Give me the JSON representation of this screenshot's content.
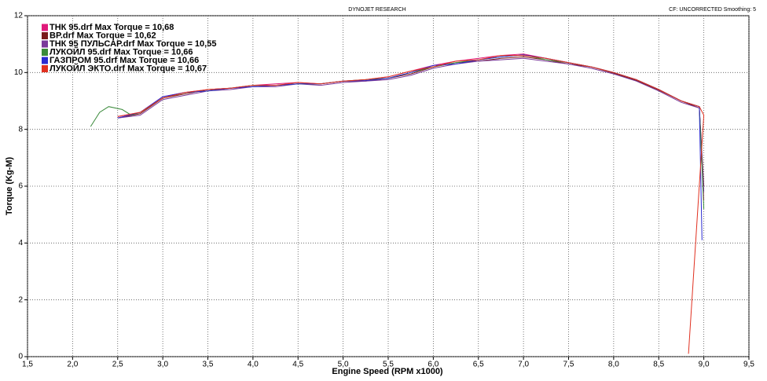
{
  "chart_data": {
    "type": "line",
    "title": "DYNOJET RESEARCH",
    "subtitle": "CF: UNCORRECTED  Smoothing: 5",
    "x_label": "Engine Speed (RPM x1000)",
    "y_label": "Torque (Kg-M)",
    "xlim": [
      1.5,
      9.5
    ],
    "xticks": [
      {
        "value": 1.5,
        "label": "1,5"
      },
      {
        "value": 2.0,
        "label": "2,0"
      },
      {
        "value": 2.5,
        "label": "2,5"
      },
      {
        "value": 3.0,
        "label": "3,0"
      },
      {
        "value": 3.5,
        "label": "3,5"
      },
      {
        "value": 4.0,
        "label": "4,0"
      },
      {
        "value": 4.5,
        "label": "4,5"
      },
      {
        "value": 5.0,
        "label": "5,0"
      },
      {
        "value": 5.5,
        "label": "5,5"
      },
      {
        "value": 6.0,
        "label": "6,0"
      },
      {
        "value": 6.5,
        "label": "6,5"
      },
      {
        "value": 7.0,
        "label": "7,0"
      },
      {
        "value": 7.5,
        "label": "7,5"
      },
      {
        "value": 8.0,
        "label": "8,0"
      },
      {
        "value": 8.5,
        "label": "8,5"
      },
      {
        "value": 9.0,
        "label": "9,0"
      },
      {
        "value": 9.5,
        "label": "9,5"
      }
    ],
    "ylim": [
      0,
      12
    ],
    "yticks": [
      0,
      2,
      4,
      6,
      8,
      10,
      12
    ],
    "grid": true,
    "legend": "top-left",
    "series": [
      {
        "name": "ТНК 95.drf Max Torque = 10,68",
        "color": "#e0197a",
        "x": [
          2.5,
          2.75,
          3.0,
          3.25,
          3.5,
          3.75,
          4.0,
          4.25,
          4.5,
          4.75,
          5.0,
          5.25,
          5.5,
          5.75,
          6.0,
          6.25,
          6.5,
          6.75,
          7.0,
          7.25,
          7.5,
          7.75,
          8.0,
          8.25,
          8.5,
          8.75,
          8.95,
          9.0
        ],
        "values": [
          8.45,
          8.6,
          9.15,
          9.3,
          9.4,
          9.45,
          9.55,
          9.6,
          9.65,
          9.6,
          9.7,
          9.75,
          9.85,
          10.05,
          10.25,
          10.4,
          10.5,
          10.6,
          10.65,
          10.5,
          10.35,
          10.2,
          10.0,
          9.75,
          9.4,
          9.0,
          8.8,
          5.5
        ]
      },
      {
        "name": "BP.drf Max Torque = 10,62",
        "color": "#7a1a1a",
        "x": [
          2.5,
          2.75,
          3.0,
          3.25,
          3.5,
          3.75,
          4.0,
          4.25,
          4.5,
          4.75,
          5.0,
          5.25,
          5.5,
          5.75,
          6.0,
          6.25,
          6.5,
          6.75,
          7.0,
          7.25,
          7.5,
          7.75,
          8.0,
          8.25,
          8.5,
          8.75,
          8.95,
          9.0
        ],
        "values": [
          8.4,
          8.55,
          9.1,
          9.25,
          9.4,
          9.45,
          9.5,
          9.55,
          9.6,
          9.6,
          9.7,
          9.7,
          9.8,
          9.95,
          10.2,
          10.35,
          10.4,
          10.5,
          10.55,
          10.45,
          10.3,
          10.2,
          9.98,
          9.72,
          9.38,
          9.0,
          8.75,
          6.0
        ]
      },
      {
        "name": "ТНК 95 ПУЛЬСАР.drf Max Torque = 10,55",
        "color": "#7a3a9a",
        "x": [
          2.5,
          2.75,
          3.0,
          3.25,
          3.5,
          3.75,
          4.0,
          4.25,
          4.5,
          4.75,
          5.0,
          5.25,
          5.5,
          5.75,
          6.0,
          6.25,
          6.5,
          6.75,
          7.0,
          7.25,
          7.5,
          7.75,
          8.0,
          8.25,
          8.5,
          8.75,
          8.95,
          9.0
        ],
        "values": [
          8.4,
          8.5,
          9.05,
          9.2,
          9.35,
          9.4,
          9.5,
          9.5,
          9.6,
          9.55,
          9.65,
          9.7,
          9.75,
          9.9,
          10.15,
          10.3,
          10.4,
          10.45,
          10.5,
          10.4,
          10.3,
          10.15,
          9.95,
          9.7,
          9.35,
          8.95,
          8.75,
          5.8
        ]
      },
      {
        "name": "ЛУКОЙЛ 95.drf Max Torque = 10,66",
        "color": "#3a8a3a",
        "x": [
          2.2,
          2.3,
          2.4,
          2.55,
          2.65,
          2.75,
          3.0,
          3.25,
          3.5,
          3.75,
          4.0,
          4.25,
          4.5,
          4.75,
          5.0,
          5.25,
          5.5,
          5.75,
          6.0,
          6.25,
          6.5,
          6.75,
          7.0,
          7.25,
          7.5,
          7.75,
          8.0,
          8.25,
          8.5,
          8.75,
          8.95,
          9.0
        ],
        "values": [
          8.1,
          8.6,
          8.8,
          8.7,
          8.5,
          8.6,
          9.1,
          9.3,
          9.35,
          9.45,
          9.55,
          9.55,
          9.6,
          9.6,
          9.7,
          9.75,
          9.8,
          10.0,
          10.2,
          10.35,
          10.45,
          10.55,
          10.62,
          10.45,
          10.35,
          10.2,
          10.0,
          9.75,
          9.4,
          9.0,
          8.8,
          5.2
        ]
      },
      {
        "name": "ГАЗПРОМ 95.drf Max Torque = 10,66",
        "color": "#2a2ad0",
        "x": [
          2.5,
          2.75,
          3.0,
          3.25,
          3.5,
          3.75,
          4.0,
          4.25,
          4.5,
          4.75,
          5.0,
          5.25,
          5.5,
          5.75,
          6.0,
          6.25,
          6.5,
          6.75,
          7.0,
          7.25,
          7.5,
          7.75,
          8.0,
          8.25,
          8.5,
          8.75,
          8.95,
          8.98
        ],
        "values": [
          8.4,
          8.6,
          9.15,
          9.3,
          9.35,
          9.45,
          9.5,
          9.55,
          9.6,
          9.6,
          9.7,
          9.72,
          9.8,
          10.0,
          10.25,
          10.3,
          10.45,
          10.55,
          10.62,
          10.5,
          10.35,
          10.2,
          10.0,
          9.75,
          9.4,
          9.0,
          8.8,
          4.1
        ]
      },
      {
        "name": "ЛУКОЙЛ ЭКТО.drf Max Torque = 10,67",
        "color": "#e03020",
        "x": [
          2.5,
          2.75,
          3.0,
          3.25,
          3.5,
          3.75,
          4.0,
          4.25,
          4.5,
          4.75,
          5.0,
          5.25,
          5.5,
          5.75,
          6.0,
          6.25,
          6.5,
          6.75,
          7.0,
          7.25,
          7.5,
          7.75,
          8.0,
          8.25,
          8.5,
          8.75,
          8.95,
          9.0,
          8.83
        ],
        "values": [
          8.45,
          8.6,
          9.1,
          9.3,
          9.4,
          9.45,
          9.55,
          9.55,
          9.65,
          9.6,
          9.7,
          9.75,
          9.85,
          10.05,
          10.2,
          10.4,
          10.45,
          10.6,
          10.6,
          10.5,
          10.35,
          10.2,
          10.0,
          9.75,
          9.4,
          9.0,
          8.8,
          8.5,
          0.1
        ]
      }
    ]
  }
}
